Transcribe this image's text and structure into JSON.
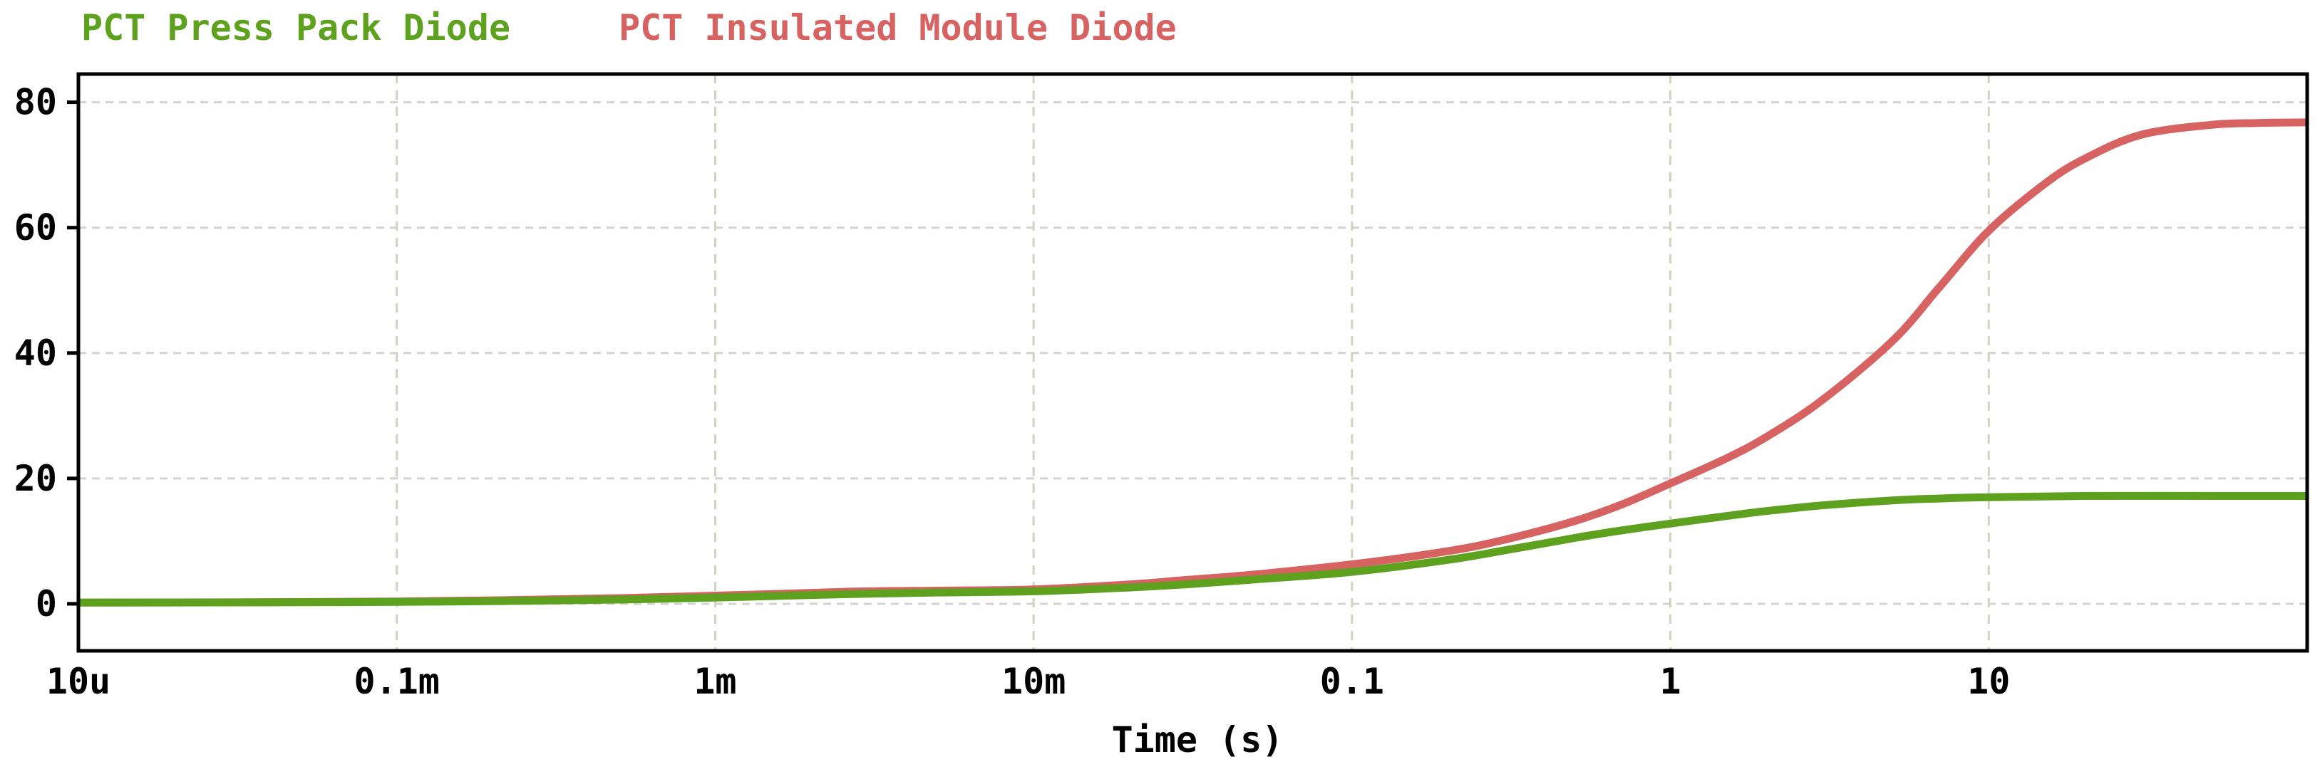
{
  "chart_data": {
    "type": "line",
    "title": "",
    "xlabel": "Time (s)",
    "ylabel": "",
    "x_scale": "log",
    "xlim": [
      1e-05,
      100
    ],
    "ylim": [
      -7.5,
      84.5
    ],
    "grid": true,
    "legend_position": "top-left-horizontal",
    "background_color": "#ffffff",
    "border_color": "#000000",
    "grid_h_color": "#d3d3d3",
    "grid_v_color": "#ccd5c0",
    "y_ticks": [
      {
        "value": 0,
        "label": "0"
      },
      {
        "value": 20,
        "label": "20"
      },
      {
        "value": 40,
        "label": "40"
      },
      {
        "value": 60,
        "label": "60"
      },
      {
        "value": 80,
        "label": "80"
      }
    ],
    "x_ticks": [
      {
        "value": 1e-05,
        "label": "10u"
      },
      {
        "value": 0.0001,
        "label": "0.1m"
      },
      {
        "value": 0.001,
        "label": "1m"
      },
      {
        "value": 0.01,
        "label": "10m"
      },
      {
        "value": 0.1,
        "label": "0.1"
      },
      {
        "value": 1,
        "label": "1"
      },
      {
        "value": 10,
        "label": "10"
      }
    ],
    "series": [
      {
        "name": "PCT Press Pack Diode",
        "color": "#5da11f",
        "points": [
          [
            1e-05,
            0.2
          ],
          [
            3e-05,
            0.22
          ],
          [
            0.0001,
            0.3
          ],
          [
            0.0002,
            0.42
          ],
          [
            0.0003,
            0.52
          ],
          [
            0.0005,
            0.68
          ],
          [
            0.001,
            1.0
          ],
          [
            0.002,
            1.4
          ],
          [
            0.003,
            1.6
          ],
          [
            0.005,
            1.8
          ],
          [
            0.01,
            2.0
          ],
          [
            0.02,
            2.6
          ],
          [
            0.03,
            3.1
          ],
          [
            0.05,
            3.9
          ],
          [
            0.1,
            5.1
          ],
          [
            0.2,
            7.0
          ],
          [
            0.3,
            8.5
          ],
          [
            0.5,
            10.5
          ],
          [
            0.7,
            11.7
          ],
          [
            1,
            12.8
          ],
          [
            1.5,
            14.0
          ],
          [
            2,
            14.8
          ],
          [
            3,
            15.7
          ],
          [
            5,
            16.5
          ],
          [
            7,
            16.8
          ],
          [
            10,
            17.0
          ],
          [
            20,
            17.2
          ],
          [
            50,
            17.2
          ],
          [
            100,
            17.2
          ]
        ]
      },
      {
        "name": "PCT Insulated Module Diode",
        "color": "#d66261",
        "points": [
          [
            1e-05,
            0.2
          ],
          [
            3e-05,
            0.24
          ],
          [
            0.0001,
            0.36
          ],
          [
            0.0002,
            0.55
          ],
          [
            0.0003,
            0.7
          ],
          [
            0.0005,
            0.9
          ],
          [
            0.001,
            1.3
          ],
          [
            0.002,
            1.75
          ],
          [
            0.003,
            2.0
          ],
          [
            0.005,
            2.1
          ],
          [
            0.01,
            2.3
          ],
          [
            0.02,
            3.1
          ],
          [
            0.03,
            3.8
          ],
          [
            0.05,
            4.7
          ],
          [
            0.1,
            6.3
          ],
          [
            0.2,
            8.4
          ],
          [
            0.3,
            10.2
          ],
          [
            0.5,
            13.2
          ],
          [
            0.7,
            15.8
          ],
          [
            1,
            19.2
          ],
          [
            1.5,
            23.2
          ],
          [
            2,
            26.6
          ],
          [
            3,
            32.5
          ],
          [
            5,
            42
          ],
          [
            7,
            50.5
          ],
          [
            10,
            59.5
          ],
          [
            15,
            67
          ],
          [
            20,
            71
          ],
          [
            30,
            74.8
          ],
          [
            50,
            76.4
          ],
          [
            70,
            76.7
          ],
          [
            100,
            76.8
          ]
        ]
      }
    ]
  }
}
